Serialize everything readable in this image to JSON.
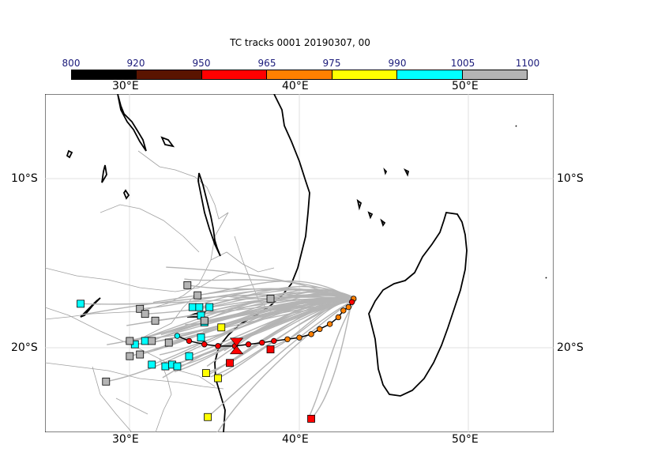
{
  "title": "TC tracks  0001 20190307, 00",
  "pressure_scale": {
    "labels": [
      "800",
      "920",
      "950",
      "965",
      "975",
      "990",
      "1005",
      "1100"
    ],
    "colors": [
      "#000000",
      "#5a1400",
      "#ff0000",
      "#ff8000",
      "#ffff00",
      "#00ffff",
      "#b4b4b4"
    ]
  },
  "axes": {
    "lon_labels": [
      "30°E",
      "40°E",
      "50°E"
    ],
    "lat_labels": [
      "10°S",
      "20°S"
    ],
    "lon_range": [
      25,
      55
    ],
    "lat_range": [
      -25,
      -5
    ]
  },
  "colors": {
    "coast": "#000000",
    "borders": "#a0a0a0",
    "ensemble_tracks": "#b4b4b4",
    "grid": "#d8d8d8"
  },
  "analysis_track": [
    {
      "lon": 43.2,
      "lat": -17.1,
      "color": "#ff8000"
    },
    {
      "lon": 43.1,
      "lat": -17.3,
      "color": "#ff0000"
    },
    {
      "lon": 42.9,
      "lat": -17.6,
      "color": "#ff8000"
    },
    {
      "lon": 42.6,
      "lat": -17.8,
      "color": "#ff8000"
    },
    {
      "lon": 42.3,
      "lat": -18.2,
      "color": "#ff8000"
    },
    {
      "lon": 41.8,
      "lat": -18.6,
      "color": "#ff8000"
    },
    {
      "lon": 41.2,
      "lat": -18.9,
      "color": "#ff8000"
    },
    {
      "lon": 40.7,
      "lat": -19.2,
      "color": "#ff8000"
    },
    {
      "lon": 40.0,
      "lat": -19.4,
      "color": "#ff8000"
    },
    {
      "lon": 39.3,
      "lat": -19.5,
      "color": "#ff8000"
    },
    {
      "lon": 38.5,
      "lat": -19.6,
      "color": "#ff0000"
    },
    {
      "lon": 37.8,
      "lat": -19.7,
      "color": "#ff0000"
    },
    {
      "lon": 37.0,
      "lat": -19.8,
      "color": "#ff0000"
    },
    {
      "lon": 36.2,
      "lat": -19.9,
      "color": "#ff0000"
    },
    {
      "lon": 35.2,
      "lat": -19.9,
      "color": "#ff0000"
    },
    {
      "lon": 34.4,
      "lat": -19.8,
      "color": "#ff0000"
    },
    {
      "lon": 33.5,
      "lat": -19.6,
      "color": "#ff0000"
    },
    {
      "lon": 32.8,
      "lat": -19.3,
      "color": "#00ffff"
    }
  ],
  "forecast_ends": [
    {
      "lon": 38.3,
      "lat": -20.1,
      "color": "#ff0000"
    },
    {
      "lon": 35.9,
      "lat": -20.9,
      "color": "#ff0000"
    },
    {
      "lon": 40.7,
      "lat": -24.2,
      "color": "#ff0000"
    },
    {
      "lon": 35.4,
      "lat": -18.8,
      "color": "#ffff00"
    },
    {
      "lon": 34.5,
      "lat": -21.5,
      "color": "#ffff00"
    },
    {
      "lon": 35.2,
      "lat": -21.8,
      "color": "#ffff00"
    },
    {
      "lon": 34.6,
      "lat": -24.1,
      "color": "#ffff00"
    },
    {
      "lon": 27.1,
      "lat": -17.4,
      "color": "#00ffff"
    },
    {
      "lon": 33.7,
      "lat": -17.6,
      "color": "#00ffff"
    },
    {
      "lon": 34.1,
      "lat": -17.6,
      "color": "#00ffff"
    },
    {
      "lon": 34.7,
      "lat": -17.6,
      "color": "#00ffff"
    },
    {
      "lon": 34.2,
      "lat": -18.1,
      "color": "#00ffff"
    },
    {
      "lon": 34.4,
      "lat": -18.5,
      "color": "#00ffff"
    },
    {
      "lon": 34.2,
      "lat": -19.4,
      "color": "#00ffff"
    },
    {
      "lon": 30.3,
      "lat": -19.8,
      "color": "#00ffff"
    },
    {
      "lon": 30.9,
      "lat": -19.6,
      "color": "#00ffff"
    },
    {
      "lon": 31.3,
      "lat": -21.0,
      "color": "#00ffff"
    },
    {
      "lon": 32.1,
      "lat": -21.1,
      "color": "#00ffff"
    },
    {
      "lon": 32.5,
      "lat": -21.0,
      "color": "#00ffff"
    },
    {
      "lon": 32.8,
      "lat": -21.1,
      "color": "#00ffff"
    },
    {
      "lon": 33.5,
      "lat": -20.5,
      "color": "#00ffff"
    },
    {
      "lon": 33.4,
      "lat": -16.3,
      "color": "#b4b4b4"
    },
    {
      "lon": 34.0,
      "lat": -16.9,
      "color": "#b4b4b4"
    },
    {
      "lon": 34.4,
      "lat": -18.4,
      "color": "#b4b4b4"
    },
    {
      "lon": 38.3,
      "lat": -17.1,
      "color": "#b4b4b4"
    },
    {
      "lon": 30.6,
      "lat": -17.7,
      "color": "#b4b4b4"
    },
    {
      "lon": 30.9,
      "lat": -18.0,
      "color": "#b4b4b4"
    },
    {
      "lon": 31.5,
      "lat": -18.4,
      "color": "#b4b4b4"
    },
    {
      "lon": 30.0,
      "lat": -19.6,
      "color": "#b4b4b4"
    },
    {
      "lon": 31.3,
      "lat": -19.6,
      "color": "#b4b4b4"
    },
    {
      "lon": 32.3,
      "lat": -19.7,
      "color": "#b4b4b4"
    },
    {
      "lon": 30.0,
      "lat": -20.5,
      "color": "#b4b4b4"
    },
    {
      "lon": 30.6,
      "lat": -20.4,
      "color": "#b4b4b4"
    },
    {
      "lon": 28.6,
      "lat": -22.0,
      "color": "#b4b4b4"
    }
  ],
  "analysis_position": {
    "lon": 36.3,
    "lat": -19.9,
    "color": "#ff0000"
  }
}
